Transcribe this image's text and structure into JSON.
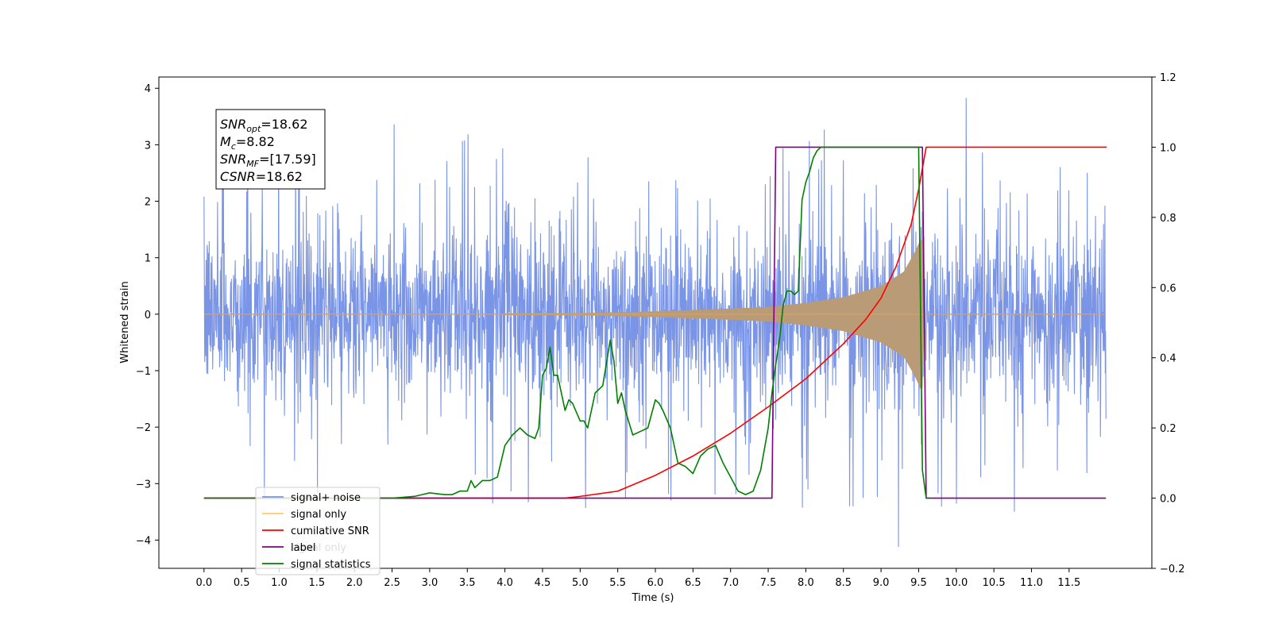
{
  "chart_data": {
    "type": "line",
    "xlabel": "Time (s)",
    "ylabel": "Whitened strain",
    "xlim": [
      -0.6,
      12.6
    ],
    "ylim": [
      -4.5,
      4.2
    ],
    "y2lim": [
      -0.2,
      1.2
    ],
    "x_ticks": [
      "0.0",
      "0.5",
      "1.0",
      "1.5",
      "2.0",
      "2.5",
      "3.0",
      "3.5",
      "4.0",
      "4.5",
      "5.0",
      "5.5",
      "6.0",
      "6.5",
      "7.0",
      "7.5",
      "8.0",
      "8.5",
      "9.0",
      "9.5",
      "10.0",
      "10.5",
      "11.0",
      "11.5"
    ],
    "y_ticks": [
      "4",
      "3",
      "2",
      "1",
      "0",
      "−1",
      "−2",
      "−3",
      "−4"
    ],
    "y2_ticks": [
      "1.2",
      "1.0",
      "0.8",
      "0.6",
      "0.4",
      "0.2",
      "0.0",
      "−0.2"
    ],
    "annotation": {
      "lines": [
        {
          "base": "SNR",
          "sub": "opt",
          "value": "=18.62"
        },
        {
          "base": "M",
          "sub": "c",
          "value": "=8.82"
        },
        {
          "base": "SNR",
          "sub": "MF",
          "value": "=[17.59]"
        },
        {
          "base": "CSNR",
          "sub": "",
          "value": "=18.62"
        }
      ]
    },
    "legend": {
      "position": "lower-left",
      "items": [
        "signal+ noise",
        "signal only",
        "cumilative SNR",
        "label",
        "signal statistics"
      ],
      "hidden_overlap_text": "signal only"
    },
    "colors": {
      "noise": "#7a94e6",
      "signal": "#d9a15a",
      "signal_fill": "#b99c77",
      "snr": "#ff0000",
      "label": "#800080",
      "stats": "#008000"
    },
    "series": [
      {
        "name": "signal+ noise",
        "axis": "left",
        "x_range": [
          0.0,
          11.99
        ],
        "baseline_std": 0.75,
        "typical_peak": 2.5,
        "max": 3.83,
        "min": -4.12
      },
      {
        "name": "signal only",
        "axis": "left",
        "x_range": [
          0.0,
          11.99
        ],
        "envelope": [
          [
            0.0,
            0.0
          ],
          [
            5.0,
            0.02
          ],
          [
            6.0,
            0.05
          ],
          [
            7.0,
            0.1
          ],
          [
            7.5,
            0.13
          ],
          [
            8.0,
            0.2
          ],
          [
            8.5,
            0.3
          ],
          [
            9.0,
            0.5
          ],
          [
            9.3,
            0.75
          ],
          [
            9.45,
            1.1
          ],
          [
            9.55,
            1.4
          ],
          [
            9.58,
            0.0
          ],
          [
            11.99,
            0.0
          ]
        ]
      },
      {
        "name": "cumilative SNR",
        "axis": "right",
        "x": [
          0.0,
          4.8,
          5.0,
          5.5,
          6.0,
          6.5,
          7.0,
          7.5,
          8.0,
          8.5,
          8.8,
          9.0,
          9.2,
          9.4,
          9.5,
          9.6,
          12.0
        ],
        "y": [
          0.0,
          0.0,
          0.005,
          0.02,
          0.065,
          0.12,
          0.185,
          0.26,
          0.34,
          0.44,
          0.51,
          0.57,
          0.66,
          0.78,
          0.88,
          1.0,
          1.0
        ]
      },
      {
        "name": "label",
        "axis": "right",
        "x": [
          0.0,
          7.55,
          7.6,
          9.55,
          9.6,
          11.99
        ],
        "y": [
          0.0,
          0.0,
          1.0,
          1.0,
          0.0,
          0.0
        ]
      },
      {
        "name": "signal statistics",
        "axis": "right",
        "x": [
          0.0,
          2.5,
          2.8,
          2.9,
          3.0,
          3.2,
          3.3,
          3.4,
          3.5,
          3.55,
          3.6,
          3.7,
          3.8,
          3.9,
          4.0,
          4.1,
          4.2,
          4.3,
          4.4,
          4.45,
          4.5,
          4.55,
          4.6,
          4.65,
          4.7,
          4.8,
          4.85,
          4.9,
          5.0,
          5.05,
          5.1,
          5.2,
          5.25,
          5.3,
          5.4,
          5.45,
          5.5,
          5.55,
          5.6,
          5.7,
          5.8,
          5.9,
          6.0,
          6.05,
          6.1,
          6.2,
          6.3,
          6.4,
          6.5,
          6.6,
          6.7,
          6.8,
          6.9,
          7.0,
          7.1,
          7.2,
          7.3,
          7.4,
          7.45,
          7.5,
          7.55,
          7.6,
          7.65,
          7.7,
          7.75,
          7.8,
          7.85,
          7.9,
          7.95,
          8.0,
          8.05,
          8.1,
          8.15,
          8.2,
          8.25,
          8.3,
          8.35,
          8.4,
          8.45,
          8.5,
          8.6,
          8.8,
          9.0,
          9.2,
          9.4,
          9.5,
          9.55,
          9.6,
          9.65
        ],
        "y": [
          0.0,
          0.0,
          0.005,
          0.01,
          0.015,
          0.01,
          0.01,
          0.02,
          0.02,
          0.05,
          0.03,
          0.05,
          0.05,
          0.06,
          0.15,
          0.18,
          0.2,
          0.18,
          0.17,
          0.2,
          0.35,
          0.37,
          0.43,
          0.35,
          0.35,
          0.25,
          0.28,
          0.27,
          0.22,
          0.22,
          0.2,
          0.3,
          0.31,
          0.32,
          0.45,
          0.39,
          0.27,
          0.3,
          0.25,
          0.18,
          0.19,
          0.2,
          0.28,
          0.27,
          0.25,
          0.2,
          0.1,
          0.09,
          0.07,
          0.12,
          0.14,
          0.15,
          0.1,
          0.06,
          0.02,
          0.01,
          0.02,
          0.08,
          0.14,
          0.2,
          0.3,
          0.38,
          0.45,
          0.55,
          0.59,
          0.59,
          0.58,
          0.59,
          0.85,
          0.9,
          0.93,
          0.97,
          0.99,
          1.0,
          1.0,
          1.0,
          1.0,
          1.0,
          1.0,
          1.0,
          1.0,
          1.0,
          1.0,
          1.0,
          1.0,
          1.0,
          0.08,
          0.0,
          0.0
        ]
      }
    ]
  }
}
